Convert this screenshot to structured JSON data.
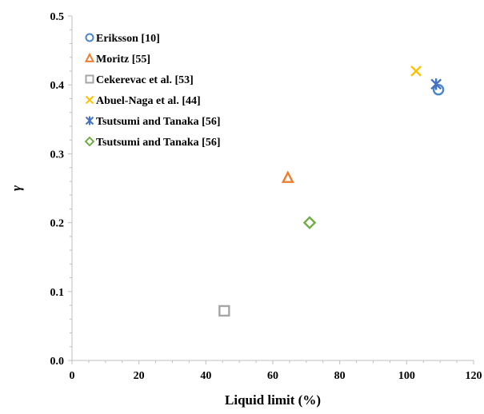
{
  "chart_data": {
    "type": "scatter",
    "xlabel": "Liquid limit (%)",
    "ylabel": "γ",
    "xlim": [
      0,
      120
    ],
    "ylim": [
      0,
      0.5
    ],
    "x_ticks": [
      "0",
      "20",
      "40",
      "60",
      "80",
      "100",
      "120"
    ],
    "y_ticks": [
      "0.0",
      "0.1",
      "0.2",
      "0.3",
      "0.4",
      "0.5"
    ],
    "grid": false,
    "legend_position": "top-left",
    "series": [
      {
        "name": "Eriksson [10]",
        "marker": "circle",
        "color": "#4a86c8",
        "points": [
          {
            "x": 109.5,
            "y": 0.393
          }
        ]
      },
      {
        "name": "Moritz [55]",
        "marker": "triangle",
        "color": "#ed7d31",
        "points": [
          {
            "x": 64.5,
            "y": 0.265
          }
        ]
      },
      {
        "name": "Cekerevac et al. [53]",
        "marker": "square",
        "color": "#a5a5a5",
        "points": [
          {
            "x": 45.5,
            "y": 0.072
          }
        ]
      },
      {
        "name": "Abuel-Naga et al. [44]",
        "marker": "x",
        "color": "#ffc000",
        "points": [
          {
            "x": 102.8,
            "y": 0.42
          }
        ]
      },
      {
        "name": "Tsutsumi and Tanaka [56]",
        "marker": "star",
        "color": "#4472c4",
        "points": [
          {
            "x": 108.8,
            "y": 0.401
          }
        ]
      },
      {
        "name": "Tsutsumi and Tanaka [56]",
        "marker": "diamond",
        "color": "#70ad47",
        "points": [
          {
            "x": 71,
            "y": 0.2
          }
        ]
      }
    ]
  }
}
